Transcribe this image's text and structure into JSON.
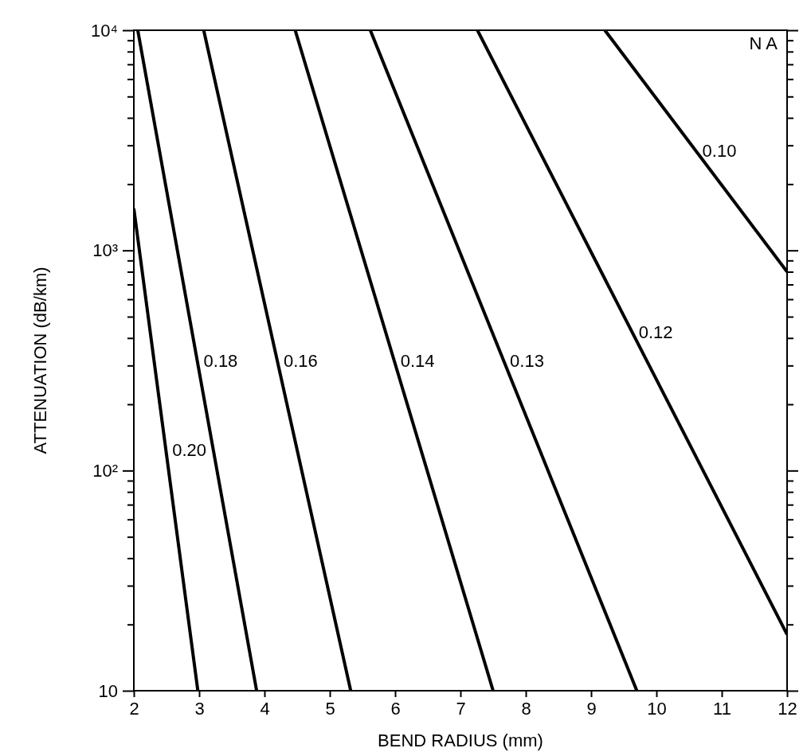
{
  "chart_data": {
    "type": "line",
    "xlabel": "BEND RADIUS (mm)",
    "ylabel": "ATTENUATION (dB/km)",
    "legend_title": "N A",
    "log": "y",
    "xlim": [
      2,
      12
    ],
    "xticks": [
      2,
      3,
      4,
      5,
      6,
      7,
      8,
      9,
      10,
      11,
      12
    ],
    "ylim": [
      10,
      10000
    ],
    "yticks": [
      {
        "value": 10,
        "label": "10"
      },
      {
        "value": 20,
        "label": null
      },
      {
        "value": 30,
        "label": null
      },
      {
        "value": 40,
        "label": null
      },
      {
        "value": 50,
        "label": null
      },
      {
        "value": 60,
        "label": null
      },
      {
        "value": 70,
        "label": null
      },
      {
        "value": 80,
        "label": null
      },
      {
        "value": 90,
        "label": null
      },
      {
        "value": 100,
        "label": "10²"
      },
      {
        "value": 200,
        "label": null
      },
      {
        "value": 300,
        "label": null
      },
      {
        "value": 400,
        "label": null
      },
      {
        "value": 500,
        "label": null
      },
      {
        "value": 600,
        "label": null
      },
      {
        "value": 700,
        "label": null
      },
      {
        "value": 800,
        "label": null
      },
      {
        "value": 900,
        "label": null
      },
      {
        "value": 1000,
        "label": "10³"
      },
      {
        "value": 2000,
        "label": null
      },
      {
        "value": 3000,
        "label": null
      },
      {
        "value": 4000,
        "label": null
      },
      {
        "value": 5000,
        "label": null
      },
      {
        "value": 6000,
        "label": null
      },
      {
        "value": 7000,
        "label": null
      },
      {
        "value": 8000,
        "label": null
      },
      {
        "value": 9000,
        "label": null
      },
      {
        "value": 10000,
        "label": "10⁴"
      }
    ],
    "grid": false,
    "marker": "none",
    "line_style": "solid",
    "series": [
      {
        "name": "0.20",
        "color": "#000000",
        "x": [
          2,
          2.98
        ],
        "values": [
          1550,
          10
        ]
      },
      {
        "name": "0.18",
        "color": "#000000",
        "x": [
          2.06,
          3.88
        ],
        "values": [
          10000,
          10
        ]
      },
      {
        "name": "0.16",
        "color": "#000000",
        "x": [
          3.07,
          5.32
        ],
        "values": [
          10000,
          10
        ]
      },
      {
        "name": "0.14",
        "color": "#000000",
        "x": [
          4.47,
          7.5
        ],
        "values": [
          10000,
          10
        ]
      },
      {
        "name": "0.13",
        "color": "#000000",
        "x": [
          5.62,
          9.7
        ],
        "values": [
          10000,
          10
        ]
      },
      {
        "name": "0.12",
        "color": "#000000",
        "x": [
          7.26,
          12
        ],
        "values": [
          10000,
          18
        ]
      },
      {
        "name": "0.10",
        "color": "#000000",
        "x": [
          9.21,
          12
        ],
        "values": [
          10000,
          800
        ]
      }
    ]
  }
}
